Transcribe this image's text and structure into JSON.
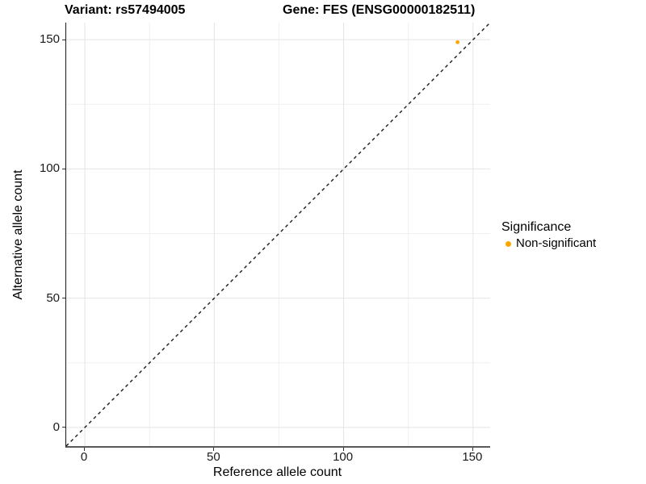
{
  "chart_data": {
    "type": "scatter",
    "titles": {
      "left": "Variant: rs57494005",
      "right": "Gene: FES (ENSG00000182511)"
    },
    "xlabel": "Reference allele count",
    "ylabel": "Alternative allele count",
    "xlim": [
      -7.2,
      156.6
    ],
    "ylim": [
      -7.2,
      156.6
    ],
    "x_ticks": [
      0,
      50,
      100,
      150
    ],
    "y_ticks": [
      0,
      50,
      100,
      150
    ],
    "minor_ticks": [
      25,
      75,
      125
    ],
    "grid": "major+minor",
    "reference_line": {
      "kind": "identity",
      "style": "dashed",
      "color": "#1a1a1a"
    },
    "series": [
      {
        "name": "Non-significant",
        "color": "#FFA500",
        "marker": "circle",
        "points": [
          {
            "x": 144,
            "y": 149
          }
        ]
      }
    ],
    "legend": {
      "title": "Significance",
      "position": "right",
      "entries": [
        {
          "label": "Non-significant",
          "color": "#FFA500"
        }
      ]
    },
    "colors": {
      "grid_major": "#E4E4E4",
      "grid_minor": "#F0F0F0",
      "axis_line_left": "#1a1a1a",
      "axis_line_bottom": "#595959",
      "tick_mark": "#333333",
      "text": "#000000"
    }
  }
}
